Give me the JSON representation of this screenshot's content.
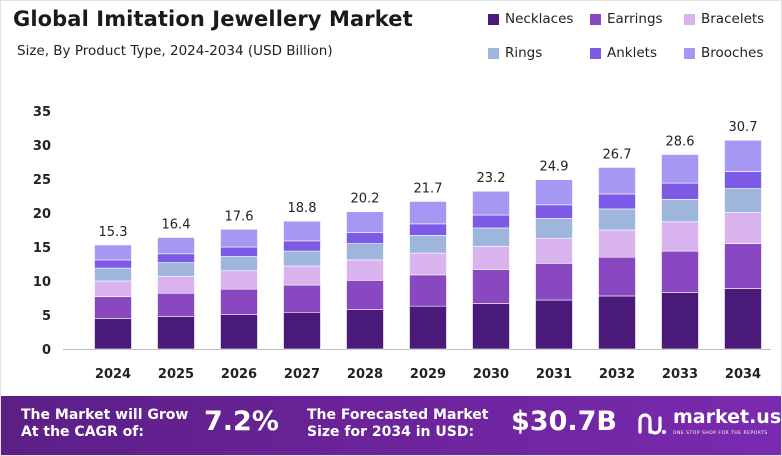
{
  "header": {
    "title": "Global Imitation Jewellery Market",
    "subtitle": "Size, By Product Type, 2024-2034 (USD Billion)"
  },
  "colors": {
    "Necklaces": "#4a1a7a",
    "Earrings": "#8a48c0",
    "Bracelets": "#d8b3ee",
    "Rings": "#9eb6dc",
    "Anklets": "#7c5ae6",
    "Brooches": "#a698f2",
    "footer": "#6a2398"
  },
  "chart_data": {
    "type": "bar",
    "stacked": true,
    "categories": [
      "2024",
      "2025",
      "2026",
      "2027",
      "2028",
      "2029",
      "2030",
      "2031",
      "2032",
      "2033",
      "2034"
    ],
    "totals": [
      15.3,
      16.4,
      17.6,
      18.8,
      20.2,
      21.7,
      23.2,
      24.9,
      26.7,
      28.6,
      30.7
    ],
    "total_labels": [
      "15.3",
      "16.4",
      "17.6",
      "18.8",
      "20.2",
      "21.7",
      "23.2",
      "24.9",
      "26.7",
      "28.6",
      "30.7"
    ],
    "series": [
      {
        "name": "Necklaces",
        "values": [
          4.5,
          4.8,
          5.1,
          5.4,
          5.8,
          6.3,
          6.7,
          7.2,
          7.8,
          8.3,
          8.9
        ]
      },
      {
        "name": "Earrings",
        "values": [
          3.2,
          3.4,
          3.7,
          4.0,
          4.3,
          4.6,
          5.0,
          5.4,
          5.7,
          6.1,
          6.6
        ]
      },
      {
        "name": "Bracelets",
        "values": [
          2.3,
          2.5,
          2.7,
          2.8,
          3.0,
          3.2,
          3.4,
          3.7,
          4.0,
          4.3,
          4.6
        ]
      },
      {
        "name": "Rings",
        "values": [
          1.9,
          2.0,
          2.1,
          2.2,
          2.4,
          2.6,
          2.7,
          2.9,
          3.1,
          3.3,
          3.5
        ]
      },
      {
        "name": "Anklets",
        "values": [
          1.2,
          1.3,
          1.4,
          1.5,
          1.6,
          1.7,
          1.9,
          2.0,
          2.2,
          2.4,
          2.5
        ]
      },
      {
        "name": "Brooches",
        "values": [
          2.2,
          2.4,
          2.6,
          2.9,
          3.1,
          3.3,
          3.5,
          3.7,
          3.9,
          4.2,
          4.6
        ]
      }
    ],
    "y_ticks": [
      0,
      5,
      10,
      15,
      20,
      25,
      30,
      35
    ],
    "ylim": [
      0,
      35
    ],
    "grid": false,
    "legend_position": "top-right"
  },
  "footer": {
    "cagr_label_line1": "The Market will Grow",
    "cagr_label_line2": "At the CAGR of:",
    "cagr_value": "7.2%",
    "forecast_label_line1": "The Forecasted Market",
    "forecast_label_line2": "Size for 2034 in USD:",
    "forecast_value": "$30.7B",
    "brand_name": "market.us",
    "brand_tagline": "ONE STOP SHOP FOR THE REPORTS"
  }
}
